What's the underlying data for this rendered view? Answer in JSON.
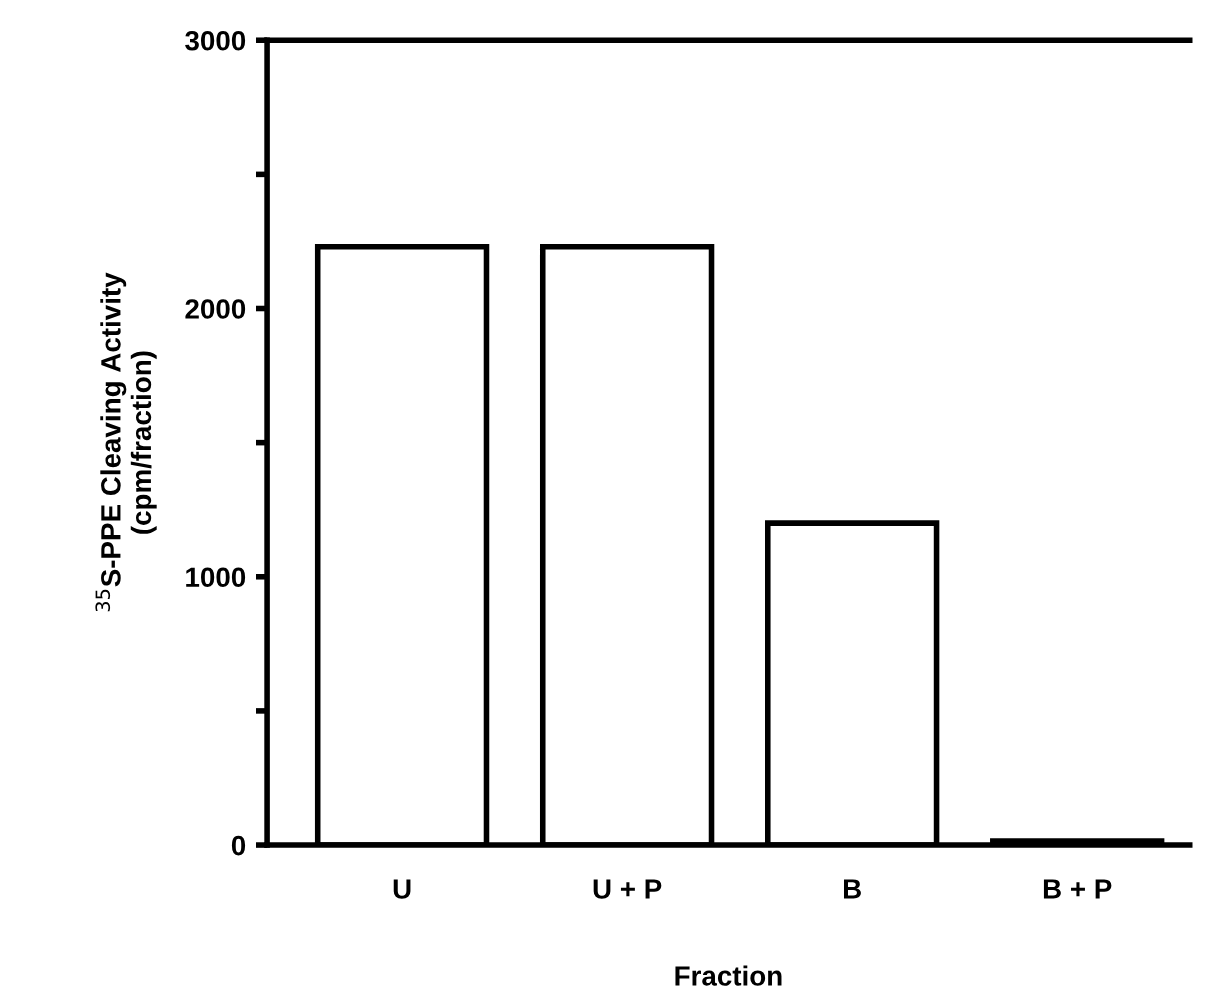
{
  "chart_data": {
    "type": "bar",
    "categories": [
      "U",
      "U + P",
      "B",
      "B + P"
    ],
    "values": [
      2230,
      2230,
      1200,
      15
    ],
    "colors": [
      "#ffffff",
      "#ffffff",
      "#ffffff",
      "#ffffff"
    ],
    "xlabel": "Fraction",
    "ylabel": "$^{35}$S-PPE Cleaving Activity\n(cpm/fraction)",
    "ylim": [
      0,
      3000
    ],
    "yticks": [
      0,
      {
        "value": 500,
        "label": null
      },
      1000,
      {
        "value": 1500,
        "label": null
      },
      2000,
      {
        "value": 2500,
        "label": null
      },
      3000
    ],
    "grid": false,
    "legend": false
  }
}
